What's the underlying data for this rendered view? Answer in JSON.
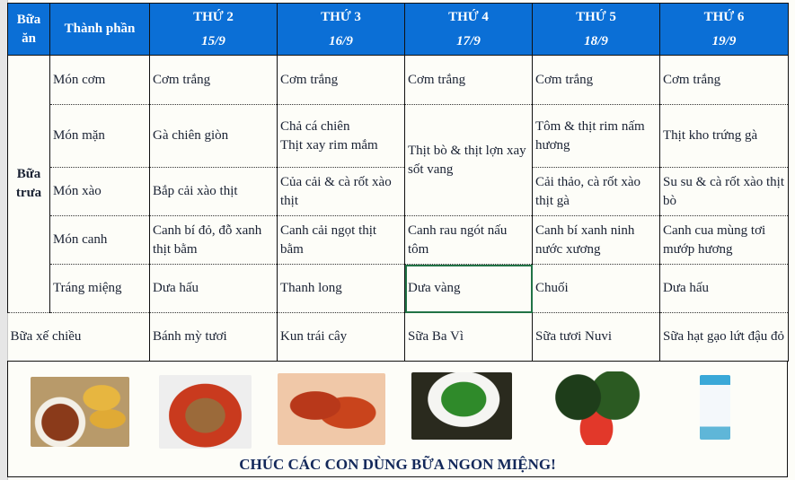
{
  "header": {
    "meal_col": "Bữa ăn",
    "component_col": "Thành phần",
    "days": [
      {
        "day": "THỨ 2",
        "date": "15/9"
      },
      {
        "day": "THỨ 3",
        "date": "16/9"
      },
      {
        "day": "THỨ 4",
        "date": "17/9"
      },
      {
        "day": "THỨ 5",
        "date": "18/9"
      },
      {
        "day": "THỨ 6",
        "date": "19/9"
      }
    ]
  },
  "lunch": {
    "label": "Bữa trưa",
    "rows": [
      {
        "component": "Món cơm",
        "items": [
          "Cơm trắng",
          "Cơm trắng",
          "Cơm trắng",
          "Cơm trắng",
          "Cơm trắng"
        ]
      },
      {
        "component": "Món mặn",
        "items": [
          "Gà chiên giòn",
          "Chả cá chiên\nThịt xay rim mắm",
          "Thịt bò & thịt lợn xay sốt vang",
          "Tôm & thịt rim nấm hương",
          "Thịt kho trứng gà"
        ]
      },
      {
        "component": "Món xào",
        "items": [
          "Bắp cải xào thịt",
          "Của cải & cà rốt xào thịt",
          "",
          "Cải thảo, cà rốt xào thịt gà",
          "Su su & cà rốt xào thịt bò"
        ]
      },
      {
        "component": "Món canh",
        "items": [
          "Canh bí đỏ, đỗ xanh thịt bằm",
          "Canh cải ngọt thịt bằm",
          "Canh rau ngót nấu tôm",
          "Canh bí xanh ninh nước xương",
          "Canh cua mùng tơi mướp hương"
        ]
      },
      {
        "component": "Tráng miệng",
        "items": [
          "Dưa hấu",
          "Thanh long",
          "Dưa vàng",
          "Chuối",
          "Dưa hấu"
        ]
      }
    ]
  },
  "snack": {
    "label": "Bữa xế chiều",
    "items": [
      "Bánh mỳ tươi",
      "Kun trái cây",
      "Sữa Ba Vì",
      "Sữa tươi Nuvi",
      "Sữa hạt gạo lứt đậu đỏ"
    ]
  },
  "footer": {
    "message": "CHÚC CÁC CON DÙNG BỮA NGON MIỆNG!"
  },
  "colors": {
    "header_bg": "#0b6fd6",
    "selection": "#217346"
  }
}
